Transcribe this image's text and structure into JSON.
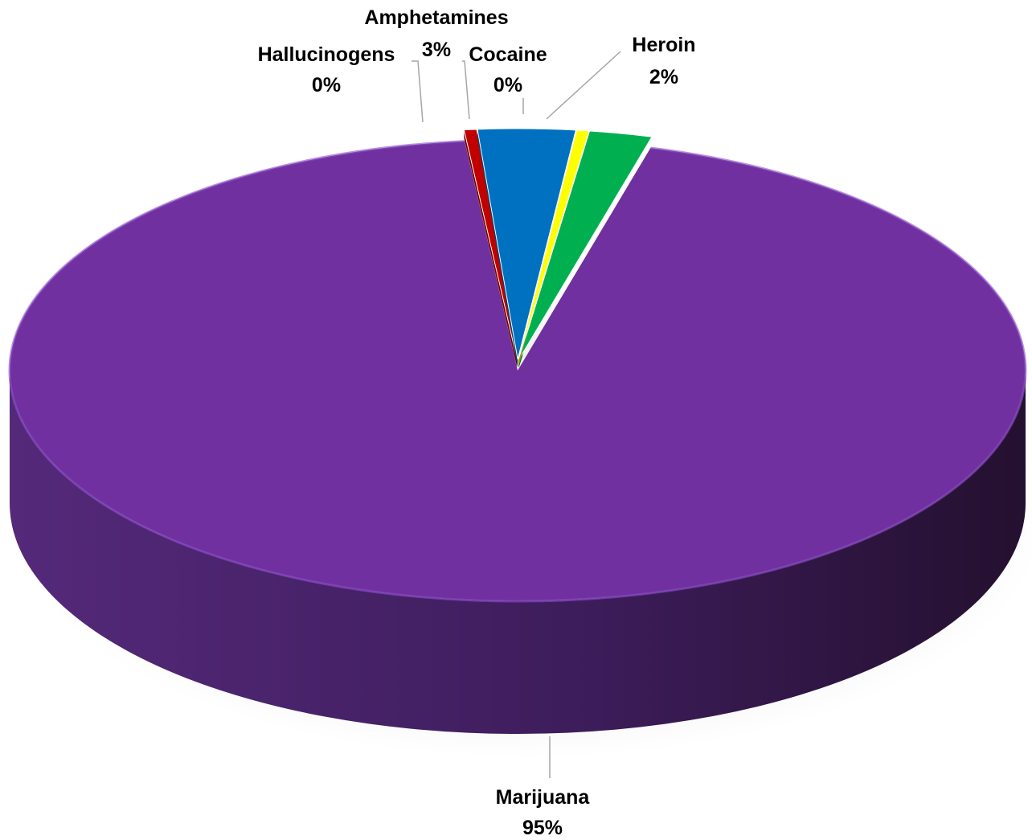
{
  "chart_data": {
    "type": "pie",
    "style": "3d",
    "title": "",
    "slices": [
      {
        "label": "Heroin",
        "value_label": "2%",
        "value": 2.0,
        "color": "#00b050",
        "name_key": "heroin"
      },
      {
        "label": "Marijuana",
        "value_label": "95%",
        "value": 94.5,
        "color": "#7030a0",
        "name_key": "marijuana"
      },
      {
        "label": "Hallucinogens",
        "value_label": "0%",
        "value": 0.4,
        "color": "#c00000",
        "name_key": "hallucinogens"
      },
      {
        "label": "Amphetamines",
        "value_label": "3%",
        "value": 3.1,
        "color": "#0070c0",
        "name_key": "amphetamines"
      },
      {
        "label": "Cocaine",
        "value_label": "0%",
        "value": 0.4,
        "color": "#ffff00",
        "name_key": "cocaine"
      }
    ],
    "legend": "none",
    "data_labels": "outside with leader lines"
  }
}
